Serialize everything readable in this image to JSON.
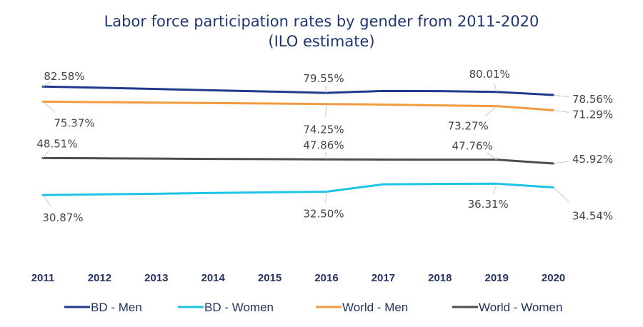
{
  "chart_data": {
    "type": "line",
    "title": "Labor force participation rates by gender from 2011-2020",
    "subtitle": "(ILO estimate)",
    "xlabel": "",
    "ylabel": "",
    "ylim": [
      0,
      100
    ],
    "grid": false,
    "legend_placement": "bottom",
    "categories": [
      "2011",
      "2012",
      "2013",
      "2014",
      "2015",
      "2016",
      "2017",
      "2018",
      "2019",
      "2020"
    ],
    "series": [
      {
        "name": "BD - Men",
        "color": "#1f3a88",
        "values": [
          82.58,
          82.0,
          81.4,
          80.8,
          80.2,
          79.55,
          80.5,
          80.4,
          80.01,
          78.56
        ],
        "labels": [
          {
            "index": 0,
            "text": "82.58%"
          },
          {
            "index": 5,
            "text": "79.55%"
          },
          {
            "index": 8,
            "text": "80.01%"
          },
          {
            "index": 9,
            "text": "78.56%"
          }
        ]
      },
      {
        "name": "BD - Women",
        "color": "#1ec3e6",
        "values": [
          30.87,
          31.2,
          31.5,
          31.9,
          32.2,
          32.5,
          36.0,
          36.2,
          36.31,
          34.54
        ],
        "labels": [
          {
            "index": 0,
            "text": "30.87%"
          },
          {
            "index": 5,
            "text": "32.50%"
          },
          {
            "index": 8,
            "text": "36.31%"
          },
          {
            "index": 9,
            "text": "34.54%"
          }
        ]
      },
      {
        "name": "World - Men",
        "color": "#f29a3f",
        "values": [
          75.37,
          75.15,
          74.9,
          74.7,
          74.5,
          74.25,
          74.0,
          73.6,
          73.27,
          71.29
        ],
        "labels": [
          {
            "index": 0,
            "text": "75.37%"
          },
          {
            "index": 5,
            "text": "74.25%"
          },
          {
            "index": 8,
            "text": "73.27%"
          },
          {
            "index": 9,
            "text": "71.29%"
          }
        ]
      },
      {
        "name": "World - Women",
        "color": "#4d4d4d",
        "values": [
          48.51,
          48.4,
          48.25,
          48.1,
          48.0,
          47.86,
          47.8,
          47.75,
          47.76,
          45.92
        ],
        "labels": [
          {
            "index": 0,
            "text": "48.51%"
          },
          {
            "index": 5,
            "text": "47.86%"
          },
          {
            "index": 8,
            "text": "47.76%"
          },
          {
            "index": 9,
            "text": "45.92%"
          }
        ]
      }
    ]
  }
}
